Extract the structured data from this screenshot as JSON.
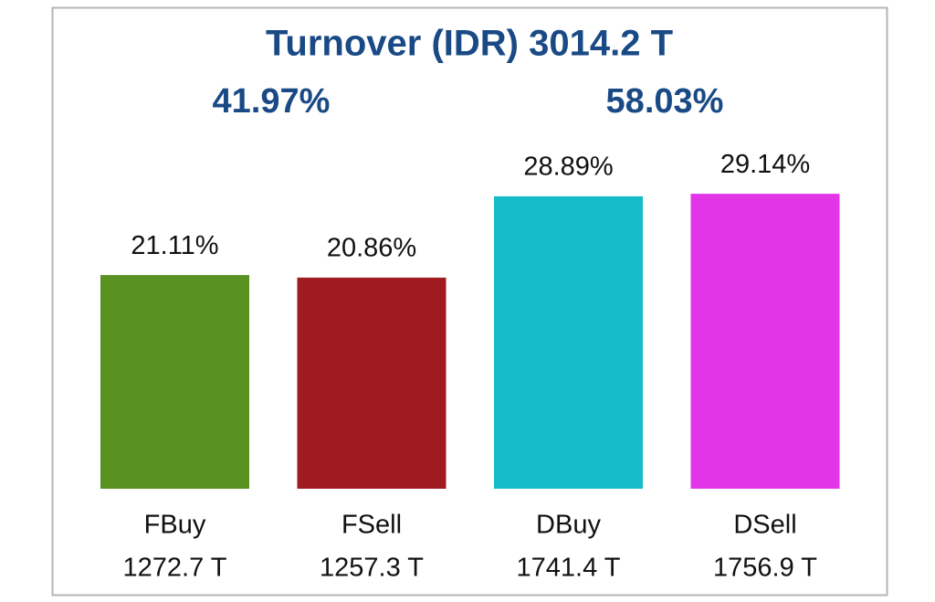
{
  "chart_data": {
    "type": "bar",
    "title": "Turnover (IDR)  3014.2 T",
    "annotations": [
      "41.97%",
      "58.03%"
    ],
    "categories": [
      "FBuy",
      "FSell",
      "DBuy",
      "DSell"
    ],
    "category_amounts": [
      "1272.7 T",
      "1257.3 T",
      "1741.4 T",
      "1756.9 T"
    ],
    "values": [
      21.11,
      20.86,
      28.89,
      29.14
    ],
    "value_labels": [
      "21.11%",
      "20.86%",
      "28.89%",
      "29.14%"
    ],
    "colors": [
      "#5a9222",
      "#a01b20",
      "#16bcc9",
      "#e335e8"
    ]
  }
}
